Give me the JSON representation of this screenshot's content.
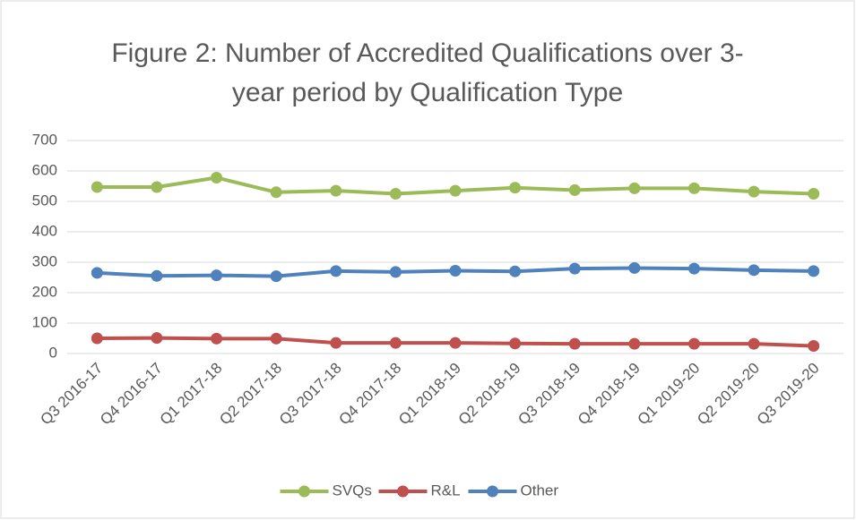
{
  "chart_data": {
    "type": "line",
    "title": "Figure 2: Number of Accredited Qualifications over 3-year period by Qualification Type",
    "categories": [
      "Q3 2016-17",
      "Q4 2016-17",
      "Q1 2017-18",
      "Q2 2017-18",
      "Q3 2017-18",
      "Q4 2017-18",
      "Q1 2018-19",
      "Q2 2018-19",
      "Q3 2018-19",
      "Q4 2018-19",
      "Q1 2019-20",
      "Q2 2019-20",
      "Q3 2019-20"
    ],
    "series": [
      {
        "name": "SVQs",
        "color": "#9bbb59",
        "values": [
          547,
          547,
          578,
          530,
          535,
          525,
          535,
          545,
          537,
          543,
          543,
          532,
          525
        ]
      },
      {
        "name": "R&L",
        "color": "#c0504d",
        "values": [
          50,
          51,
          49,
          49,
          35,
          35,
          35,
          33,
          32,
          32,
          32,
          32,
          25
        ]
      },
      {
        "name": "Other",
        "color": "#4f81bd",
        "values": [
          265,
          255,
          257,
          254,
          271,
          268,
          272,
          270,
          279,
          281,
          279,
          274,
          271
        ]
      }
    ],
    "ylim": [
      0,
      700
    ],
    "yticks": [
      0,
      100,
      200,
      300,
      400,
      500,
      600,
      700
    ],
    "grid": true,
    "legend": "bottom"
  }
}
